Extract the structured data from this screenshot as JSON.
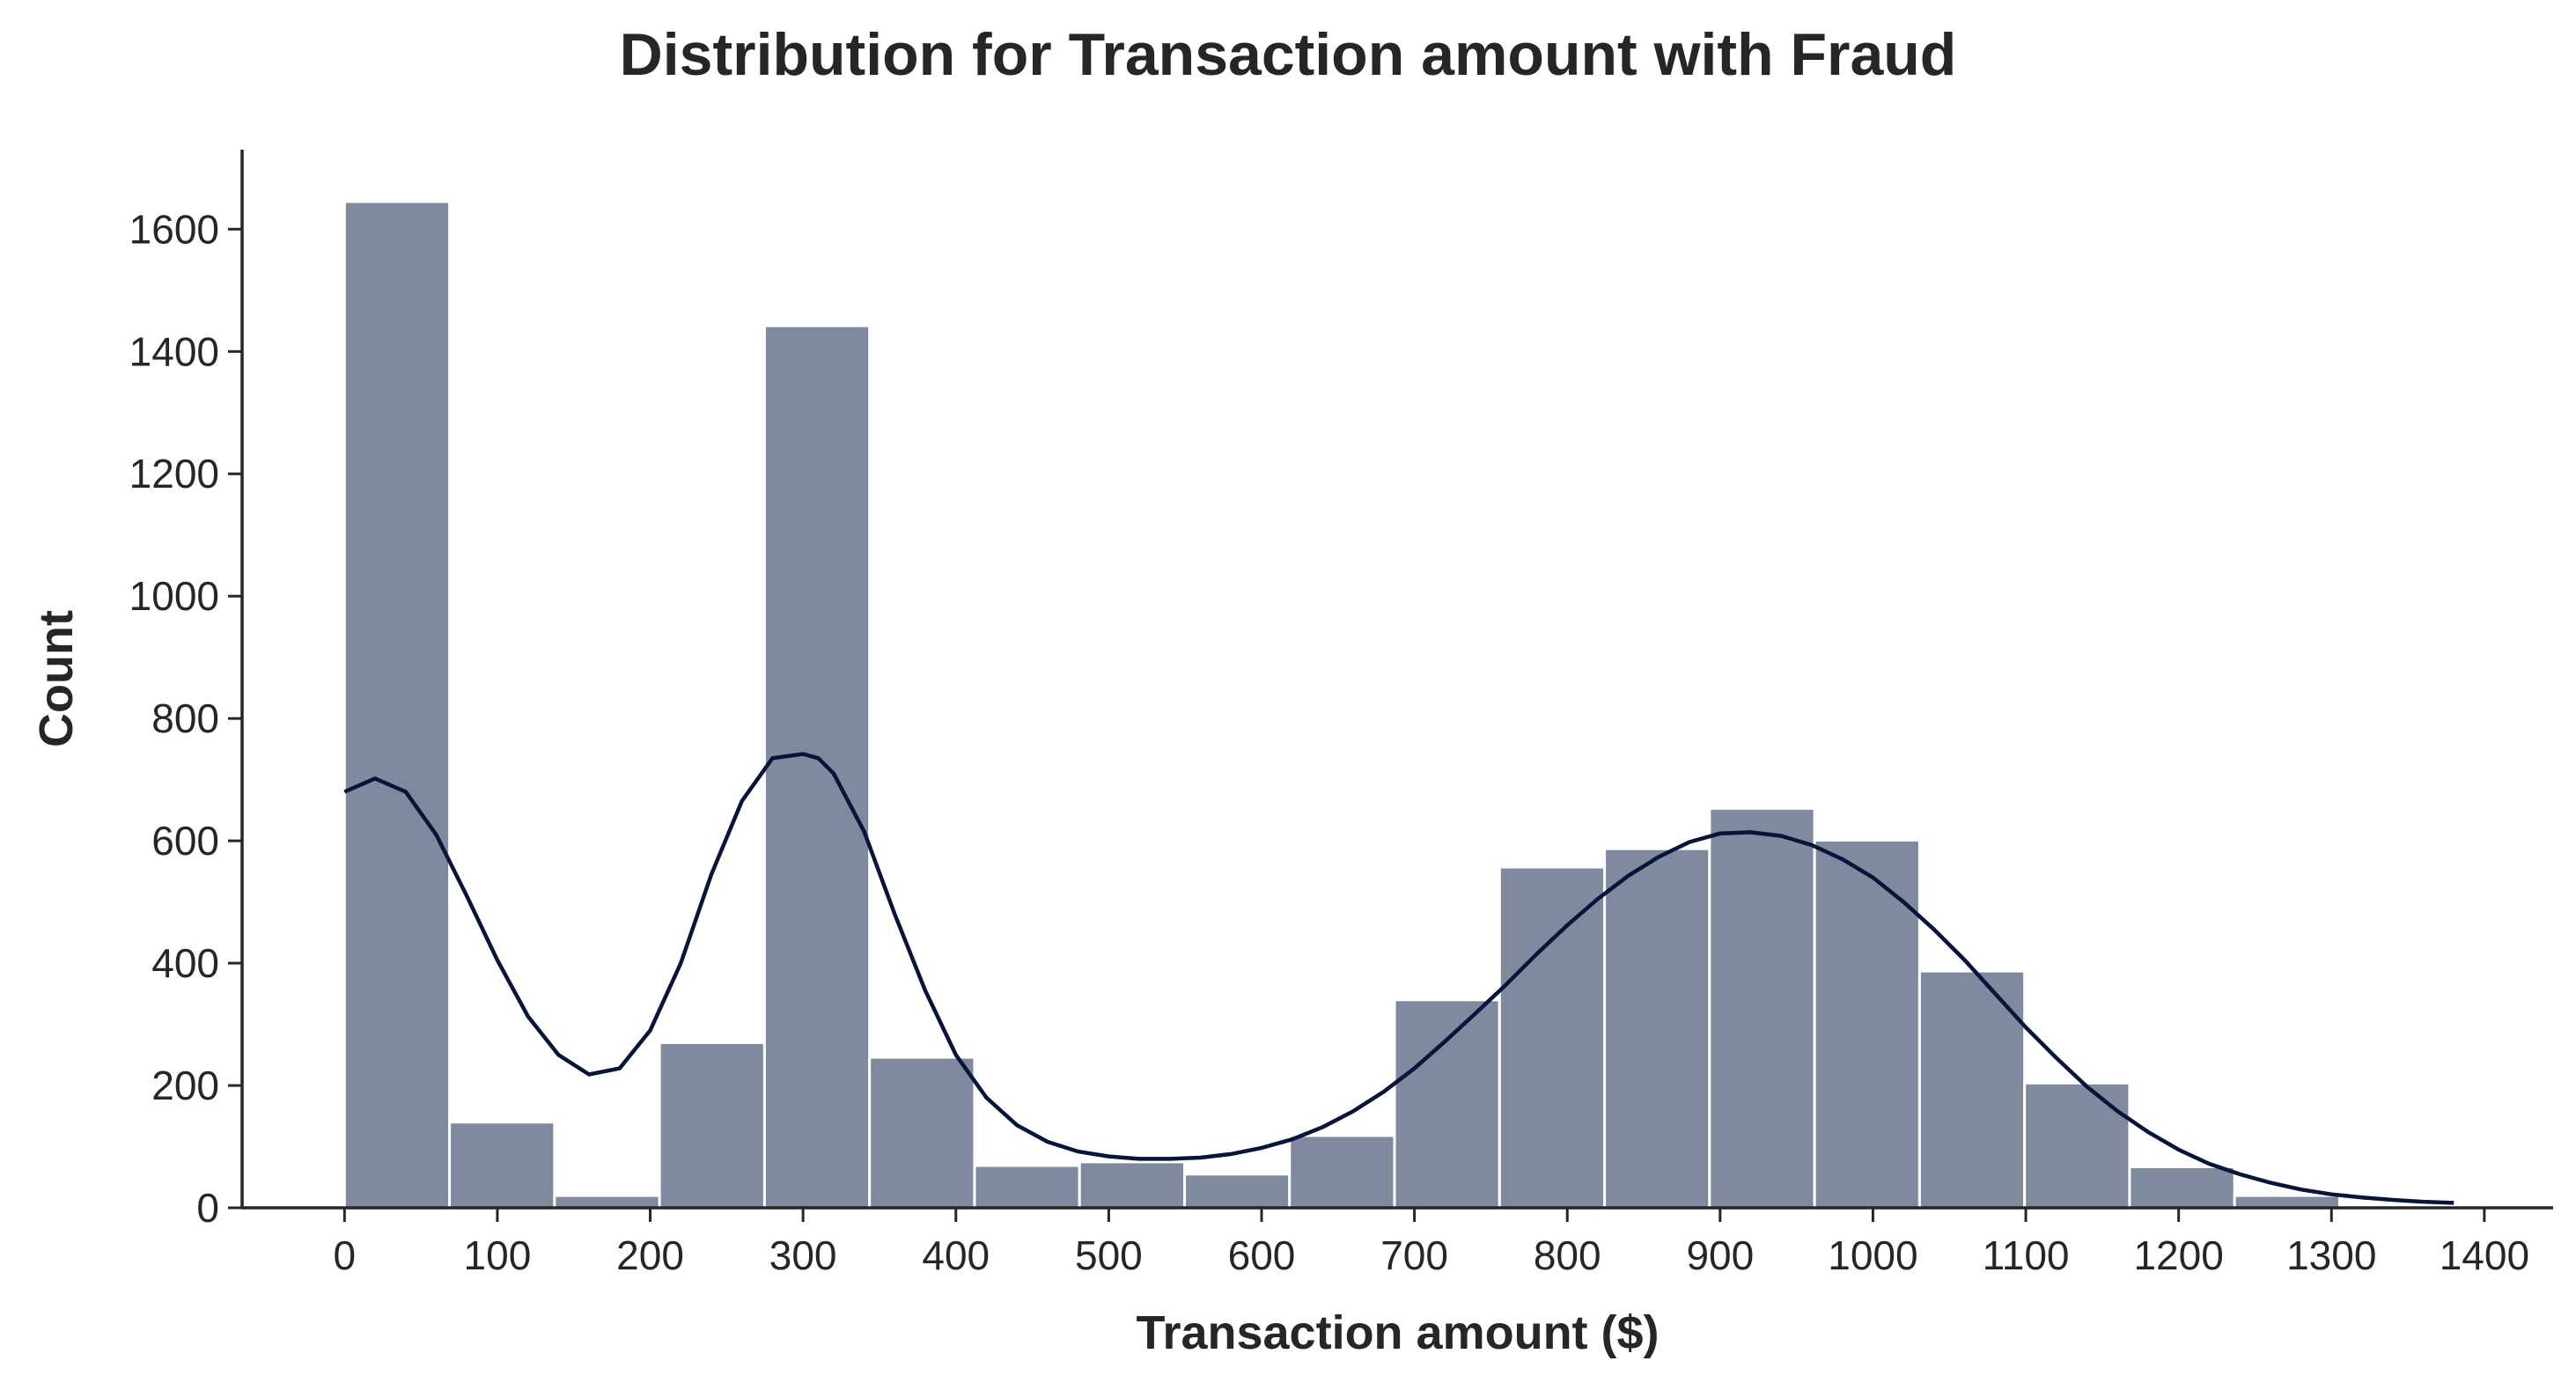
{
  "chart_data": {
    "type": "bar",
    "title": "Distribution for Transaction amount with Fraud",
    "xlabel": "Transaction amount ($)",
    "ylabel": "Count",
    "xlim": [
      -67,
      1445
    ],
    "ylim": [
      0,
      1730
    ],
    "x_ticks": [
      "0",
      "100",
      "200",
      "300",
      "400",
      "500",
      "600",
      "700",
      "800",
      "900",
      "1000",
      "1100",
      "1200",
      "1300",
      "1400"
    ],
    "x_tick_values": [
      0,
      100,
      200,
      300,
      400,
      500,
      600,
      700,
      800,
      900,
      1000,
      1100,
      1200,
      1300,
      1400
    ],
    "y_ticks": [
      "0",
      "200",
      "400",
      "600",
      "800",
      "1000",
      "1200",
      "1400",
      "1600"
    ],
    "y_tick_values": [
      0,
      200,
      400,
      600,
      800,
      1000,
      1200,
      1400,
      1600
    ],
    "bin_start": 0,
    "bin_width": 68.7,
    "values": [
      1645,
      140,
      20,
      270,
      1442,
      246,
      69,
      75,
      55,
      118,
      340,
      557,
      587,
      653,
      601,
      387,
      204,
      67,
      20
    ],
    "kde_x": [
      0,
      20,
      40,
      60,
      80,
      100,
      120,
      140,
      160,
      180,
      200,
      220,
      240,
      260,
      280,
      300,
      310,
      320,
      340,
      360,
      380,
      400,
      420,
      440,
      460,
      480,
      500,
      520,
      540,
      560,
      580,
      600,
      620,
      640,
      660,
      680,
      700,
      720,
      740,
      760,
      780,
      800,
      820,
      840,
      860,
      880,
      900,
      920,
      940,
      960,
      980,
      1000,
      1020,
      1040,
      1060,
      1080,
      1100,
      1120,
      1140,
      1160,
      1180,
      1200,
      1220,
      1240,
      1260,
      1280,
      1300,
      1320,
      1340,
      1360,
      1380
    ],
    "kde_y": [
      680,
      702,
      680,
      610,
      510,
      405,
      313,
      250,
      218,
      228,
      290,
      400,
      545,
      665,
      735,
      742,
      735,
      710,
      615,
      480,
      355,
      250,
      180,
      135,
      108,
      92,
      84,
      80,
      80,
      82,
      88,
      98,
      112,
      132,
      158,
      190,
      228,
      272,
      318,
      365,
      415,
      462,
      505,
      543,
      574,
      598,
      612,
      614,
      608,
      593,
      570,
      540,
      500,
      455,
      405,
      350,
      295,
      245,
      198,
      158,
      124,
      95,
      72,
      55,
      41,
      30,
      22,
      17,
      13,
      10,
      8
    ],
    "colors": {
      "bar": "#7f8a9f",
      "kde": "#061539",
      "axis": "#262626"
    }
  }
}
